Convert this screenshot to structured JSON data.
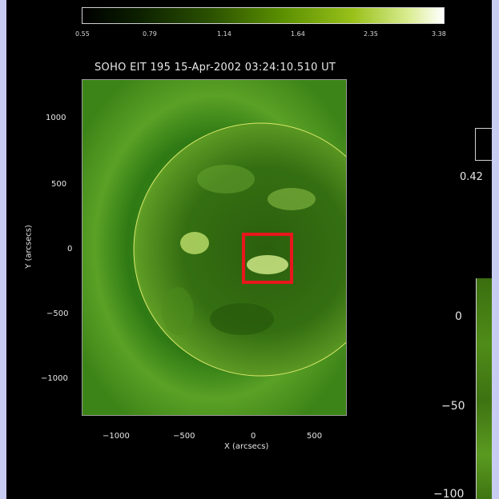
{
  "colorbar": {
    "ticks": [
      "0.55",
      "0.79",
      "1.14",
      "1.64",
      "2.35",
      "3.38"
    ]
  },
  "image": {
    "title": "SOHO EIT 195 15-Apr-2002 03:24:10.510 UT",
    "y_ticks": [
      "1000",
      "500",
      "0",
      "−500",
      "−1000"
    ],
    "x_ticks": [
      "−1000",
      "−500",
      "0",
      "500"
    ],
    "x_label": "X (arcsecs)",
    "y_label": "Y (arcsecs)",
    "highlight_color": "#e8161c",
    "limb_color": "#d8e86a"
  },
  "right_partial": {
    "colorbar_min_label": "0.42",
    "y_ticks": [
      "0",
      "−50",
      "−100"
    ]
  }
}
